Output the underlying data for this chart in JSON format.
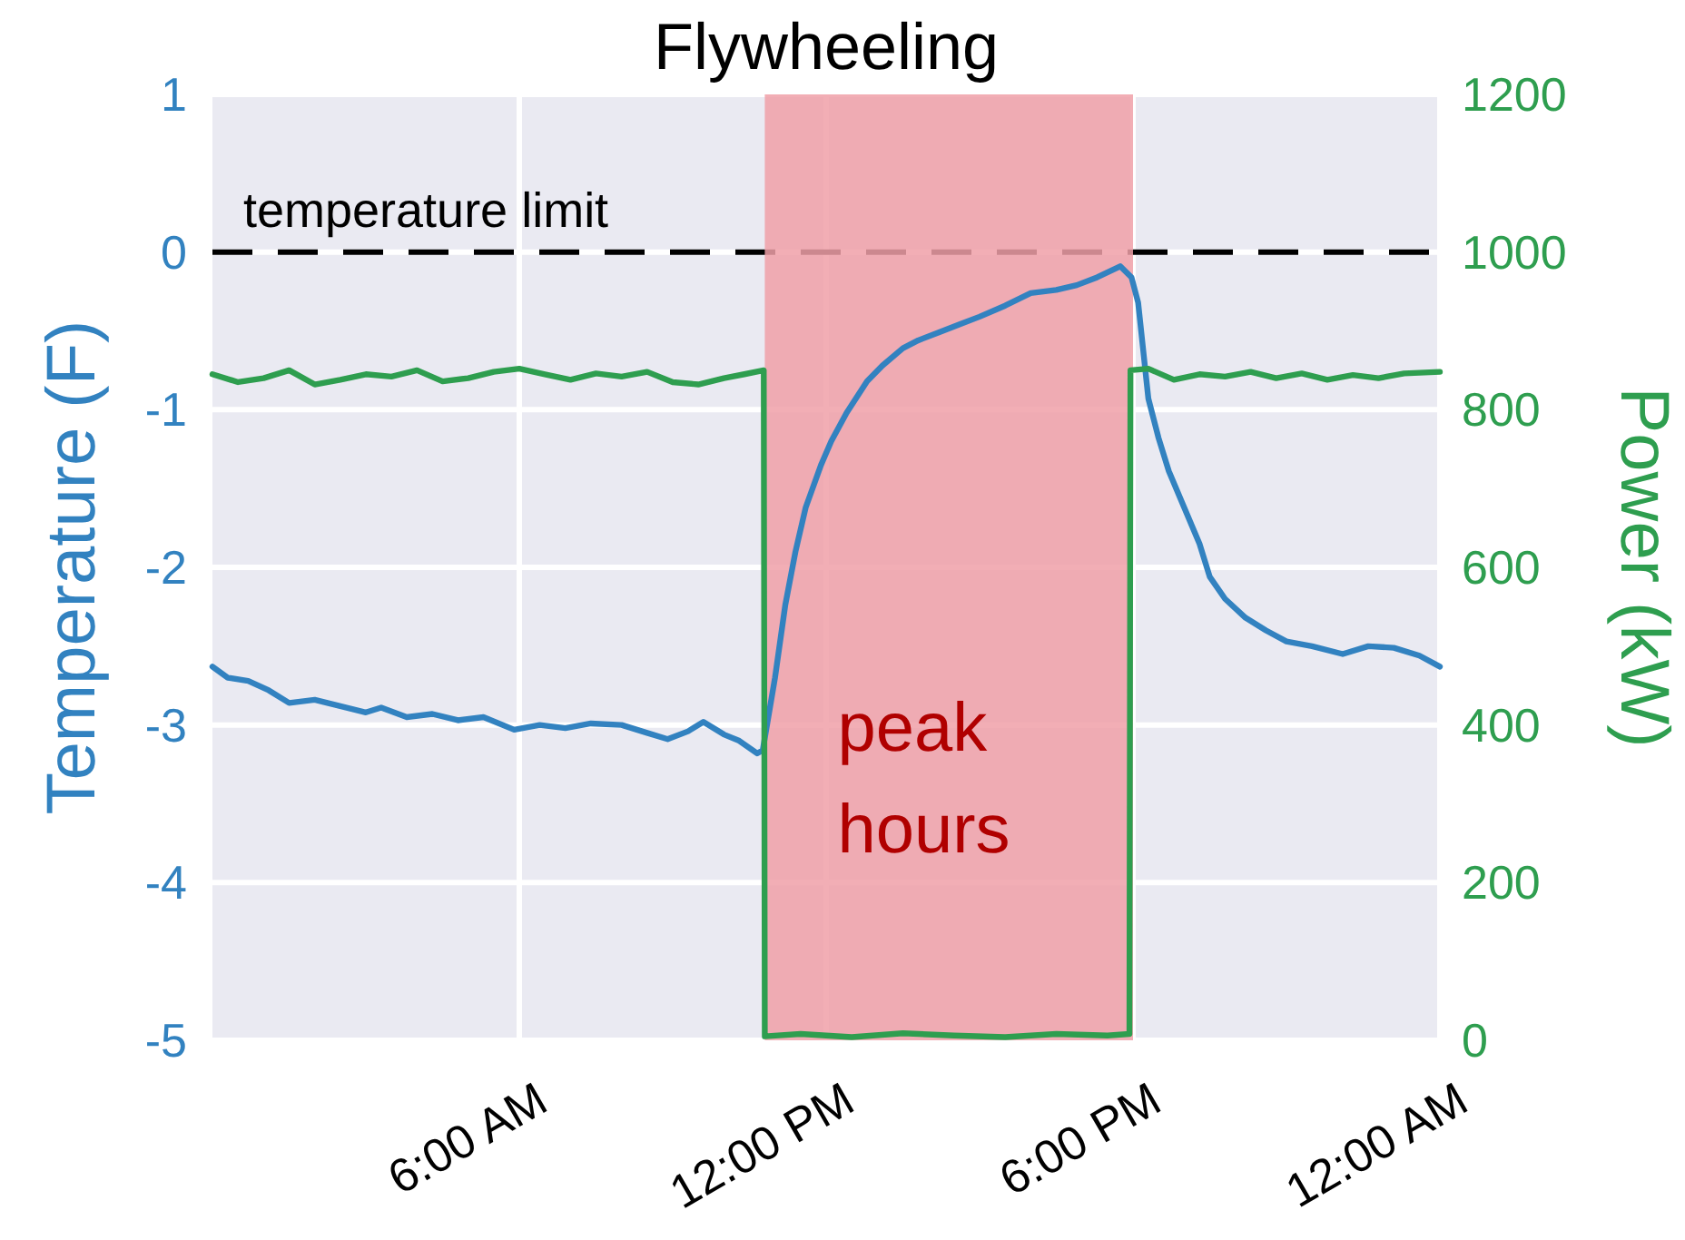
{
  "chart_data": {
    "type": "line",
    "title": "Flywheeling",
    "ylabel": "Temperature (F)",
    "y2label": "Power (kW)",
    "xlim": [
      0,
      24
    ],
    "xticks": [
      {
        "value": 6,
        "label": "6:00 AM"
      },
      {
        "value": 12,
        "label": "12:00 PM"
      },
      {
        "value": 18,
        "label": "6:00 PM"
      },
      {
        "value": 24,
        "label": "12:00 AM"
      }
    ],
    "ylim": [
      -5,
      1
    ],
    "yticks": [
      -5,
      -4,
      -3,
      -2,
      -1,
      0,
      1
    ],
    "y2lim": [
      0,
      1200
    ],
    "y2ticks": [
      0,
      200,
      400,
      600,
      800,
      1000,
      1200
    ],
    "grid": true,
    "series": [
      {
        "color": "#3282c0",
        "x": [
          0,
          0.3,
          0.7,
          1.1,
          1.5,
          2,
          2.5,
          3,
          3.3,
          3.8,
          4.3,
          4.8,
          5.3,
          5.9,
          6.4,
          6.9,
          7.4,
          8,
          8.5,
          8.9,
          9.3,
          9.6,
          10,
          10.3,
          10.65,
          10.76,
          11,
          11.2,
          11.4,
          11.6,
          11.9,
          12.1,
          12.4,
          12.8,
          13.1,
          13.5,
          13.8,
          14.2,
          14.6,
          15,
          15.5,
          16,
          16.5,
          16.9,
          17.3,
          17.75,
          17.97,
          18.1,
          18.3,
          18.5,
          18.7,
          19,
          19.3,
          19.5,
          19.8,
          20.2,
          20.6,
          21,
          21.5,
          22.1,
          22.6,
          23.1,
          23.6,
          24
        ],
        "values": [
          -2.63,
          -2.7,
          -2.72,
          -2.78,
          -2.86,
          -2.84,
          -2.88,
          -2.92,
          -2.89,
          -2.95,
          -2.93,
          -2.97,
          -2.95,
          -3.03,
          -3.0,
          -3.02,
          -2.99,
          -3.0,
          -3.05,
          -3.09,
          -3.04,
          -2.98,
          -3.06,
          -3.1,
          -3.18,
          -3.16,
          -2.7,
          -2.24,
          -1.9,
          -1.62,
          -1.35,
          -1.2,
          -1.02,
          -0.82,
          -0.72,
          -0.61,
          -0.56,
          -0.51,
          -0.46,
          -0.41,
          -0.34,
          -0.26,
          -0.24,
          -0.21,
          -0.16,
          -0.09,
          -0.16,
          -0.32,
          -0.93,
          -1.18,
          -1.39,
          -1.62,
          -1.85,
          -2.06,
          -2.2,
          -2.32,
          -2.4,
          -2.47,
          -2.5,
          -2.55,
          -2.5,
          -2.51,
          -2.56,
          -2.63
        ]
      },
      {
        "color": "#2e9e4f",
        "axis": "y2",
        "x": [
          0,
          0.5,
          1,
          1.5,
          2,
          2.5,
          3,
          3.5,
          4,
          4.5,
          5,
          5.5,
          6,
          6.5,
          7,
          7.5,
          8,
          8.5,
          9,
          9.5,
          10,
          10.4,
          10.78,
          10.8,
          11.5,
          12.5,
          13.5,
          14.5,
          15.5,
          16.5,
          17.5,
          17.93,
          17.95,
          18.3,
          18.8,
          19.3,
          19.8,
          20.3,
          20.8,
          21.3,
          21.8,
          22.3,
          22.8,
          23.3,
          24
        ],
        "values": [
          845,
          835,
          840,
          850,
          832,
          838,
          845,
          842,
          850,
          836,
          840,
          848,
          852,
          845,
          838,
          846,
          842,
          848,
          835,
          832,
          840,
          845,
          850,
          5,
          8,
          4,
          9,
          6,
          4,
          8,
          6,
          8,
          850,
          852,
          838,
          845,
          842,
          848,
          840,
          846,
          838,
          844,
          840,
          846,
          848
        ]
      }
    ],
    "ref_lines": [
      {
        "axis": "y",
        "value": 0,
        "label": "temperature limit",
        "color": "#000000",
        "line_style": "dashed"
      }
    ],
    "bands": [
      {
        "axis": "x",
        "from": 10.8,
        "to": 18,
        "label": "peak hours",
        "color": "#f0a0a8"
      }
    ]
  }
}
